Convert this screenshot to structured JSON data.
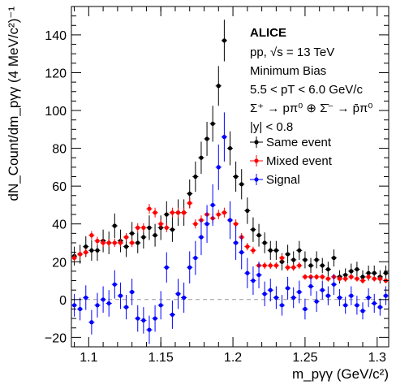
{
  "chart_data": {
    "type": "scatter",
    "title": "ALICE",
    "annotations": [
      "pp, √s = 13 TeV",
      "Minimum Bias",
      "5.5 < pT < 6.0 GeV/c",
      "Σ⁺ → pπ⁰ ⊕ Σ̄⁻ → p̄π⁰",
      "|y| < 0.8"
    ],
    "xlabel": "m_pγγ (GeV/c²)",
    "ylabel": "dN_Count/dm_pγγ (4 MeV/c²)⁻¹",
    "xlim": [
      1.088,
      1.308
    ],
    "ylim": [
      -25,
      155
    ],
    "xticks": [
      1.1,
      1.15,
      1.2,
      1.25,
      1.3
    ],
    "xtick_labels": [
      "1.1",
      "1.15",
      "1.2",
      "1.25",
      "1.3"
    ],
    "yticks": [
      -20,
      0,
      20,
      40,
      60,
      80,
      100,
      120,
      140
    ],
    "ytick_labels": [
      "−20",
      "0",
      "20",
      "40",
      "60",
      "80",
      "100",
      "120",
      "140"
    ],
    "zero_line": true,
    "grid": false,
    "legend_position": "top-right",
    "x": [
      1.09,
      1.094,
      1.098,
      1.102,
      1.106,
      1.11,
      1.114,
      1.118,
      1.122,
      1.126,
      1.13,
      1.134,
      1.138,
      1.142,
      1.146,
      1.15,
      1.154,
      1.158,
      1.162,
      1.166,
      1.17,
      1.174,
      1.178,
      1.182,
      1.186,
      1.19,
      1.194,
      1.198,
      1.202,
      1.206,
      1.21,
      1.214,
      1.218,
      1.222,
      1.226,
      1.23,
      1.234,
      1.238,
      1.242,
      1.246,
      1.25,
      1.254,
      1.258,
      1.262,
      1.266,
      1.27,
      1.274,
      1.278,
      1.282,
      1.286,
      1.29,
      1.294,
      1.298,
      1.302,
      1.306
    ],
    "series": [
      {
        "name": "Same event",
        "color": "#000000",
        "values": [
          23,
          24,
          28,
          26,
          26,
          31,
          30,
          39,
          31,
          28,
          35,
          30,
          33,
          38,
          34,
          38,
          45,
          37,
          46,
          46,
          56,
          65,
          75,
          85,
          93,
          113,
          137,
          80,
          65,
          61,
          47,
          37,
          34,
          30,
          26,
          26,
          20,
          24,
          21,
          26,
          21,
          18,
          21,
          18,
          16,
          22,
          12,
          13,
          15,
          16,
          12,
          14,
          14,
          12,
          14
        ],
        "errors": [
          5,
          5,
          5.5,
          5.5,
          5.5,
          6,
          6,
          6.5,
          6,
          5.5,
          6,
          5.5,
          6,
          6.5,
          6,
          6.5,
          7,
          6.5,
          7,
          7,
          7.5,
          8,
          8.5,
          9,
          9.5,
          10.5,
          11,
          9,
          8,
          8,
          7,
          6.5,
          6,
          5.5,
          5,
          5,
          4.5,
          5,
          4.5,
          5,
          4.5,
          4,
          4.5,
          4,
          4,
          4.5,
          3.5,
          3.5,
          4,
          4,
          3.5,
          4,
          4,
          3.5,
          4
        ]
      },
      {
        "name": "Mixed event",
        "color": "#ff0000",
        "values": [
          22,
          24,
          25,
          34,
          31,
          30,
          30,
          30,
          30,
          33,
          30,
          38,
          38,
          48,
          46,
          40,
          38,
          46,
          46,
          46,
          51,
          40,
          42,
          45,
          43,
          45,
          46,
          42,
          40,
          33,
          28,
          26,
          18,
          18,
          18,
          18,
          22,
          17,
          17,
          18,
          12,
          12,
          12,
          12,
          11,
          12,
          11,
          11,
          12,
          11,
          10,
          12,
          11,
          11,
          10
        ],
        "errors": [
          2,
          2,
          2,
          2.2,
          2.2,
          2.2,
          2.2,
          2.2,
          2.2,
          2.2,
          2.2,
          2.4,
          2.4,
          2.6,
          2.6,
          2.4,
          2.4,
          2.6,
          2.6,
          2.6,
          2.8,
          2.4,
          2.5,
          2.5,
          2.5,
          2.5,
          2.6,
          2.5,
          2.4,
          2.2,
          2,
          2,
          1.8,
          1.8,
          1.8,
          1.8,
          2,
          1.8,
          1.8,
          1.8,
          1.5,
          1.5,
          1.5,
          1.5,
          1.5,
          1.5,
          1.5,
          1.5,
          1.5,
          1.5,
          1.4,
          1.5,
          1.5,
          1.5,
          1.4
        ]
      },
      {
        "name": "Signal",
        "color": "#0000ff",
        "values": [
          -3,
          -5,
          1,
          -12,
          -3,
          0,
          -2,
          8,
          2,
          -4,
          4,
          -10,
          -11,
          -16,
          -10,
          -3,
          17,
          -8,
          3,
          1,
          17,
          22,
          33,
          40,
          50,
          70,
          86,
          42,
          30,
          25,
          14,
          10,
          13,
          3,
          5,
          1,
          -3,
          6,
          1,
          4,
          -5,
          7,
          -1,
          5,
          2,
          8,
          1,
          -3,
          2,
          -3,
          -6,
          1,
          -2,
          -4,
          2
        ],
        "errors": [
          6,
          6,
          6.5,
          6.5,
          6.5,
          7,
          7,
          7.5,
          7,
          6.5,
          7,
          7,
          7,
          7.5,
          7,
          7.5,
          8,
          7.5,
          8,
          8,
          8.5,
          9,
          9.5,
          10,
          11,
          12,
          13,
          10,
          9,
          9,
          8,
          7.5,
          7,
          6.5,
          6,
          6,
          5.5,
          6,
          5.5,
          6,
          5.5,
          5,
          5.5,
          5,
          5,
          5.5,
          4.5,
          4.5,
          5,
          5,
          4.5,
          5,
          5,
          4.5,
          5
        ]
      }
    ]
  }
}
